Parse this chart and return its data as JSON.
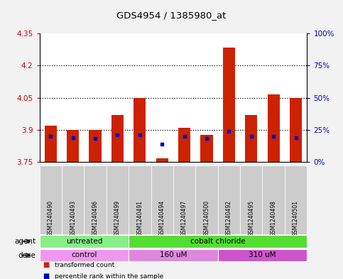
{
  "title": "GDS4954 / 1385980_at",
  "samples": [
    "GSM1240490",
    "GSM1240493",
    "GSM1240496",
    "GSM1240499",
    "GSM1240491",
    "GSM1240494",
    "GSM1240497",
    "GSM1240500",
    "GSM1240492",
    "GSM1240495",
    "GSM1240498",
    "GSM1240501"
  ],
  "transformed_counts": [
    3.92,
    3.9,
    3.9,
    3.97,
    4.05,
    3.765,
    3.91,
    3.875,
    4.285,
    3.97,
    4.065,
    4.05
  ],
  "percentile_ranks": [
    20,
    19,
    18,
    21,
    21,
    14,
    20,
    18,
    24,
    20,
    20,
    19
  ],
  "ymin": 3.75,
  "ymax": 4.35,
  "yticks": [
    3.75,
    3.9,
    4.05,
    4.2,
    4.35
  ],
  "y2ticks": [
    0,
    25,
    50,
    75,
    100
  ],
  "y2labels": [
    "0%",
    "25%",
    "50%",
    "75%",
    "100%"
  ],
  "bar_color": "#cc2200",
  "dot_color": "#0000bb",
  "bar_bottom": 3.75,
  "agent_groups": [
    {
      "label": "untreated",
      "start": 0,
      "end": 4,
      "color": "#88ee88"
    },
    {
      "label": "cobalt chloride",
      "start": 4,
      "end": 12,
      "color": "#55dd33"
    }
  ],
  "dose_groups": [
    {
      "label": "control",
      "start": 0,
      "end": 4,
      "color": "#ee99ee"
    },
    {
      "label": "160 uM",
      "start": 4,
      "end": 8,
      "color": "#dd88dd"
    },
    {
      "label": "310 uM",
      "start": 8,
      "end": 12,
      "color": "#cc55cc"
    }
  ],
  "dose_colors": [
    "#ee99ee",
    "#dd88dd",
    "#cc55cc"
  ],
  "left_label_color": "#cc0000",
  "y2label_color": "#0000bb",
  "bg_color": "#ffffff",
  "fig_bg": "#f2f2f2",
  "tick_bg": "#cccccc"
}
